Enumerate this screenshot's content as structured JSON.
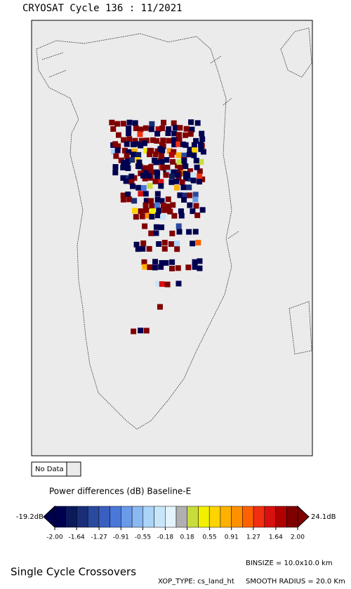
{
  "title": "CRYOSAT Cycle 136 : 11/2021",
  "no_data_label": "No Data",
  "colorbar": {
    "title": "Power differences (dB) Baseline-E",
    "min_label": "-19.2dB",
    "max_label": "24.1dB",
    "ticks": [
      {
        "value": -2.0,
        "label": "-2.00"
      },
      {
        "value": -1.64,
        "label": "-1.64"
      },
      {
        "value": -1.27,
        "label": "-1.27"
      },
      {
        "value": -0.91,
        "label": "-0.91"
      },
      {
        "value": -0.55,
        "label": "-0.55"
      },
      {
        "value": -0.18,
        "label": "-0.18"
      },
      {
        "value": 0.18,
        "label": "0.18"
      },
      {
        "value": 0.55,
        "label": "0.55"
      },
      {
        "value": 0.91,
        "label": "0.91"
      },
      {
        "value": 1.27,
        "label": "1.27"
      },
      {
        "value": 1.64,
        "label": "1.64"
      },
      {
        "value": 2.0,
        "label": "2.00"
      }
    ],
    "colors": [
      "#000050",
      "#0a1a5a",
      "#1a2d78",
      "#2a4aa0",
      "#3a5fc0",
      "#4a78d8",
      "#6a9ae8",
      "#8ab8f0",
      "#aad4f8",
      "#c8e6fa",
      "#e4f2fb",
      "#b0b0b0",
      "#c8dc3c",
      "#f0f000",
      "#ffd400",
      "#ffb000",
      "#ff9000",
      "#ff6000",
      "#f03010",
      "#d81010",
      "#b00000",
      "#800000"
    ]
  },
  "footer": {
    "heading": "Single Cycle Crossovers",
    "binsize": "BINSIZE = 10.0x10.0 km",
    "xop_type": "XOP_TYPE: cs_land_ht",
    "smooth_radius": "SMOOTH RADIUS = 20.0 Km"
  }
}
